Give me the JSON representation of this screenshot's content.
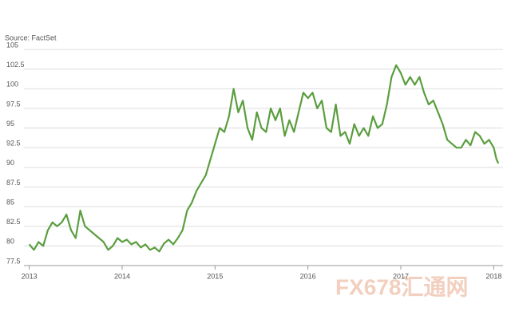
{
  "chart_data": {
    "type": "line",
    "annotations": [
      "Source: FactSet",
      "FX678汇通网"
    ],
    "x": [
      2013.0,
      2013.05,
      2013.1,
      2013.15,
      2013.2,
      2013.25,
      2013.3,
      2013.35,
      2013.4,
      2013.45,
      2013.5,
      2013.55,
      2013.6,
      2013.65,
      2013.7,
      2013.75,
      2013.8,
      2013.85,
      2013.9,
      2013.95,
      2014.0,
      2014.05,
      2014.1,
      2014.15,
      2014.2,
      2014.25,
      2014.3,
      2014.35,
      2014.4,
      2014.45,
      2014.5,
      2014.55,
      2014.6,
      2014.65,
      2014.7,
      2014.75,
      2014.8,
      2014.85,
      2014.9,
      2014.95,
      2015.0,
      2015.05,
      2015.1,
      2015.15,
      2015.2,
      2015.25,
      2015.3,
      2015.35,
      2015.4,
      2015.45,
      2015.5,
      2015.55,
      2015.6,
      2015.65,
      2015.7,
      2015.75,
      2015.8,
      2015.85,
      2015.9,
      2015.95,
      2016.0,
      2016.05,
      2016.1,
      2016.15,
      2016.2,
      2016.25,
      2016.3,
      2016.35,
      2016.4,
      2016.45,
      2016.5,
      2016.55,
      2016.6,
      2016.65,
      2016.7,
      2016.75,
      2016.8,
      2016.85,
      2016.9,
      2016.95,
      2017.0,
      2017.05,
      2017.1,
      2017.15,
      2017.2,
      2017.25,
      2017.3,
      2017.35,
      2017.4,
      2017.45,
      2017.5,
      2017.55,
      2017.6,
      2017.65,
      2017.7,
      2017.75,
      2017.8,
      2017.85,
      2017.9,
      2017.95,
      2018.0,
      2018.03,
      2018.05
    ],
    "series": [
      {
        "color": "#5a9e3e",
        "values": [
          80.2,
          79.5,
          80.5,
          80,
          82,
          83,
          82.5,
          83,
          84,
          82,
          81,
          84.5,
          82.5,
          82,
          81.5,
          81,
          80.5,
          79.5,
          80,
          81,
          80.5,
          80.8,
          80.2,
          80.5,
          79.8,
          80.2,
          79.5,
          79.8,
          79.3,
          80.3,
          80.8,
          80.2,
          81,
          82,
          84.5,
          85.5,
          87,
          88,
          89,
          91,
          93,
          95,
          94.5,
          96.5,
          100,
          97,
          98.5,
          95,
          93.5,
          97,
          95,
          94.5,
          97.5,
          96,
          97.5,
          94,
          96,
          94.5,
          97,
          99.5,
          98.8,
          99.5,
          97.5,
          98.5,
          95,
          94.5,
          98,
          94,
          94.5,
          93,
          95.5,
          94,
          95,
          94,
          96.5,
          95,
          95.5,
          98,
          101.5,
          103,
          102,
          100.5,
          101.5,
          100.5,
          101.5,
          99.5,
          98,
          98.5,
          97,
          95.5,
          93.5,
          93,
          92.5,
          92.5,
          93.5,
          92.8,
          94.5,
          94,
          93,
          93.5,
          92.5,
          91,
          90.5
        ]
      }
    ],
    "xlim": [
      2012.9,
      2018.1
    ],
    "xticks": [
      2013,
      2014,
      2015,
      2016,
      2017,
      2018
    ],
    "ylim": [
      77.5,
      105
    ],
    "yticks": [
      77.5,
      80,
      82.5,
      85,
      87.5,
      90,
      92.5,
      95,
      97.5,
      100,
      102.5,
      105
    ],
    "grid": true
  }
}
